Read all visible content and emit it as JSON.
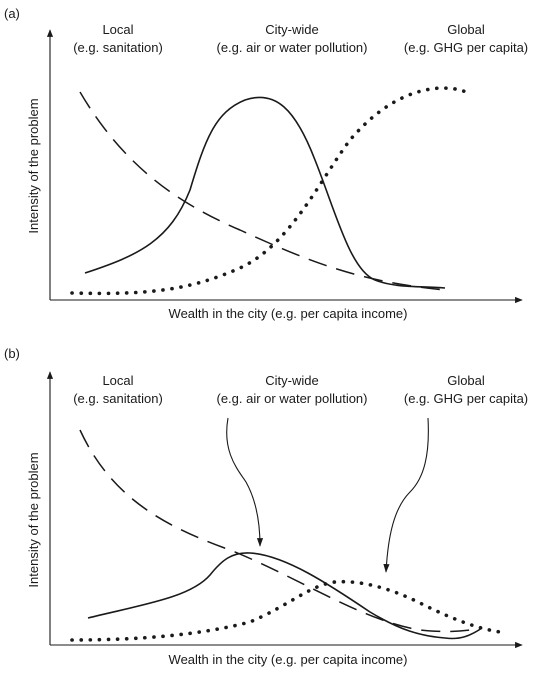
{
  "panels": [
    {
      "label": "(a)",
      "categories": {
        "local": {
          "name": "Local",
          "example": "(e.g. sanitation)"
        },
        "city": {
          "name": "City-wide",
          "example": "(e.g. air or water pollution)"
        },
        "global": {
          "name": "Global",
          "example": "(e.g. GHG per capita)"
        }
      },
      "ylabel": "Intensity of the problem",
      "xlabel": "Wealth in the city (e.g. per capita income)"
    },
    {
      "label": "(b)",
      "categories": {
        "local": {
          "name": "Local",
          "example": "(e.g. sanitation)"
        },
        "city": {
          "name": "City-wide",
          "example": "(e.g. air or water pollution)"
        },
        "global": {
          "name": "Global",
          "example": "(e.g. GHG per capita)"
        }
      },
      "ylabel": "Intensity of the problem",
      "xlabel": "Wealth in the city (e.g. per capita income)"
    }
  ],
  "line_styles": {
    "local": "dashed",
    "city": "solid",
    "global": "dotted"
  },
  "ink_color": "#1a1a1a"
}
